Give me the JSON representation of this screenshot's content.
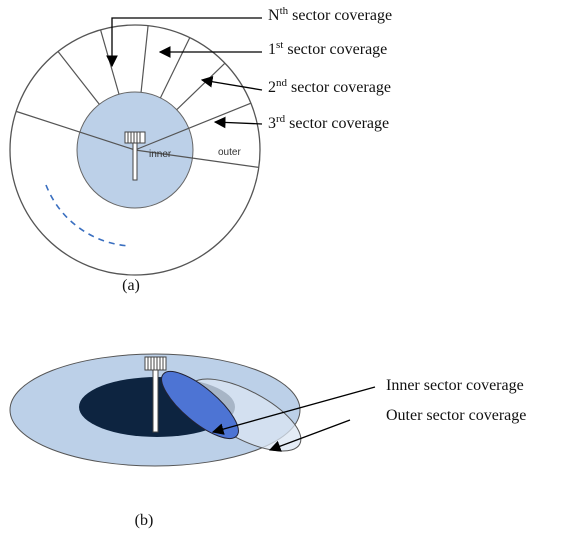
{
  "panel_a": {
    "labels": [
      {
        "base": "N",
        "sup": "th",
        "rest": "sector coverage"
      },
      {
        "base": "1",
        "sup": "st",
        "rest": "sector coverage"
      },
      {
        "base": "2",
        "sup": "nd",
        "rest": "sector coverage"
      },
      {
        "base": "3",
        "sup": "rd",
        "rest": "sector coverage"
      }
    ],
    "inner": "inner",
    "outer": "outer",
    "caption": "(a)"
  },
  "panel_b": {
    "labels": [
      "Inner sector coverage",
      "Outer sector coverage"
    ],
    "caption": "(b)"
  }
}
